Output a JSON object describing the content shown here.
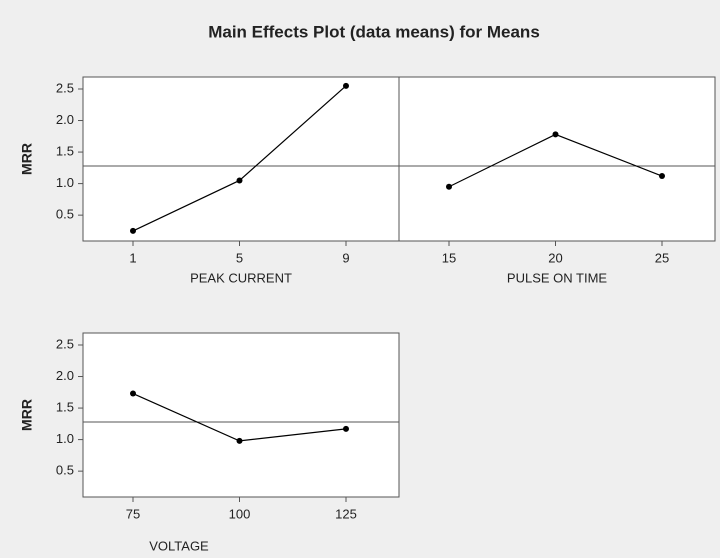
{
  "title": "Main Effects Plot (data means) for Means",
  "chart_data": [
    {
      "type": "line",
      "xlabel": "PEAK CURRENT",
      "ylabel": "MRR",
      "categories": [
        "1",
        "5",
        "9"
      ],
      "values": [
        0.25,
        1.05,
        2.55
      ],
      "color": "#000000",
      "mean_line": 1.28,
      "ylim": [
        0.09,
        2.69
      ],
      "yticks": [
        0.5,
        {
          "value": 1,
          "label": "1.0"
        },
        1.5,
        {
          "value": 2,
          "label": "2.0"
        },
        2.5
      ]
    },
    {
      "type": "line",
      "xlabel": "PULSE ON TIME",
      "categories": [
        "15",
        "20",
        "25"
      ],
      "values": [
        0.95,
        1.78,
        1.12
      ],
      "color": "#000000",
      "mean_line": 1.28,
      "ylim": [
        0.09,
        2.69
      ]
    },
    {
      "type": "line",
      "xlabel": "VOLTAGE",
      "ylabel": "MRR",
      "categories": [
        "75",
        "100",
        "125"
      ],
      "values": [
        1.73,
        0.98,
        1.17
      ],
      "color": "#000000",
      "mean_line": 1.28,
      "ylim": [
        0.09,
        2.69
      ],
      "yticks": [
        0.5,
        {
          "value": 1,
          "label": "1.0"
        },
        1.5,
        {
          "value": 2,
          "label": "2.0"
        },
        2.5
      ]
    }
  ]
}
